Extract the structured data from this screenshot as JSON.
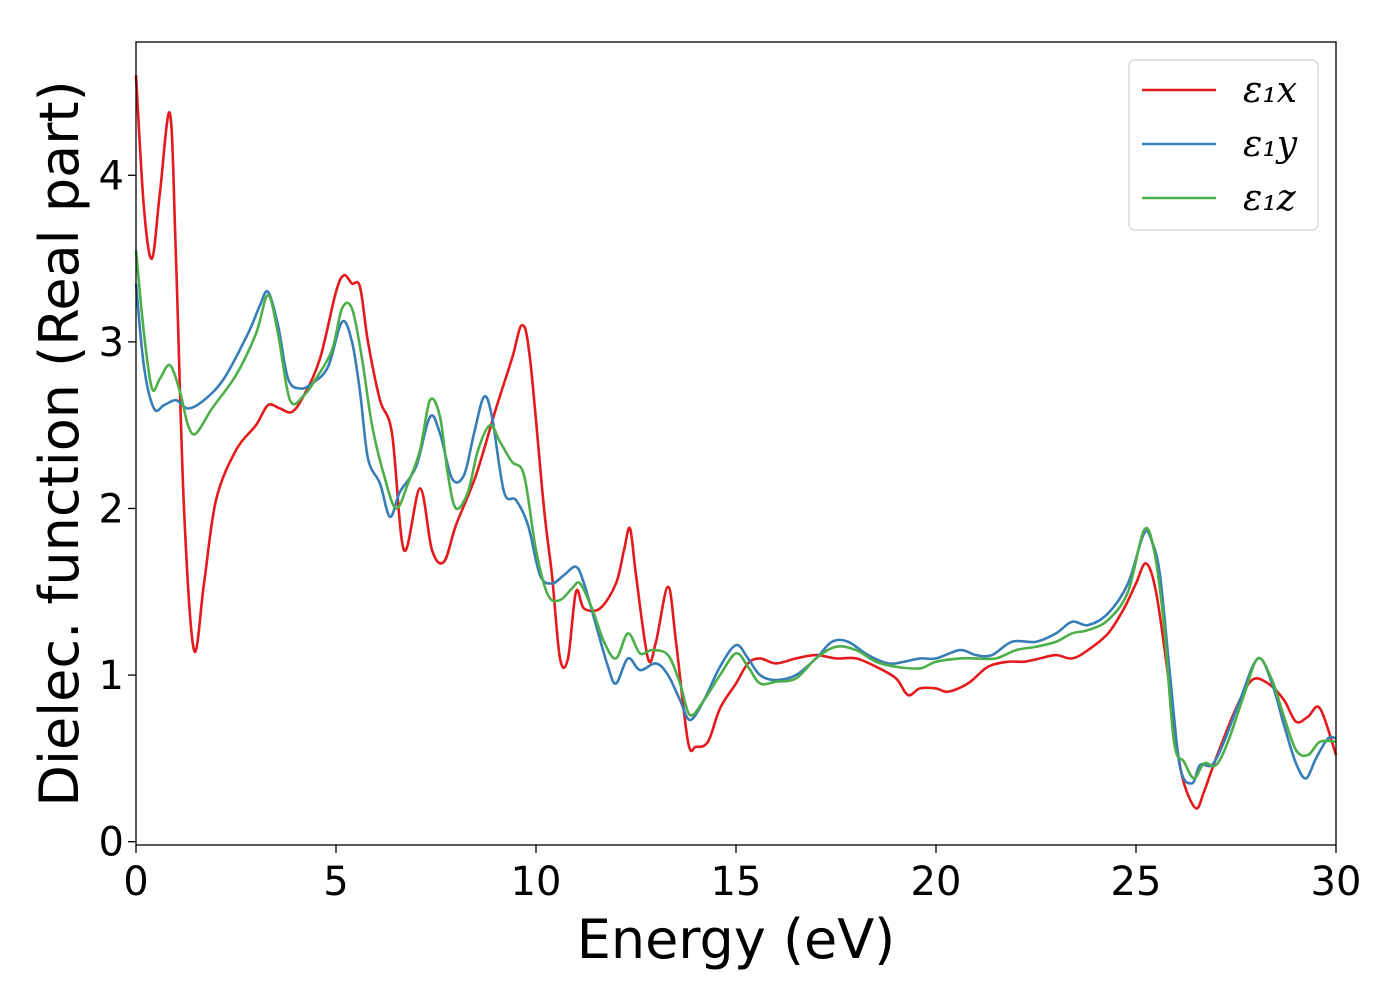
{
  "chart_data": {
    "type": "line",
    "title": "",
    "xlabel": "Energy (eV)",
    "ylabel": "Dielec. function (Real part)",
    "xlim": [
      0,
      30
    ],
    "ylim": [
      -0.02,
      4.8
    ],
    "xticks": [
      0,
      5,
      10,
      15,
      20,
      25,
      30
    ],
    "yticks": [
      0,
      1,
      2,
      3,
      4
    ],
    "grid": false,
    "legend_position": "top-right",
    "series": [
      {
        "name": "ε₁x",
        "color": "#e41a1c",
        "points": [
          [
            0,
            4.6
          ],
          [
            0.2,
            3.8
          ],
          [
            0.4,
            3.5
          ],
          [
            0.6,
            3.9
          ],
          [
            0.85,
            4.37
          ],
          [
            1.0,
            3.5
          ],
          [
            1.2,
            2.0
          ],
          [
            1.45,
            1.15
          ],
          [
            1.7,
            1.55
          ],
          [
            2.0,
            2.05
          ],
          [
            2.5,
            2.35
          ],
          [
            3.0,
            2.5
          ],
          [
            3.3,
            2.62
          ],
          [
            3.6,
            2.6
          ],
          [
            3.9,
            2.58
          ],
          [
            4.2,
            2.68
          ],
          [
            4.6,
            2.9
          ],
          [
            5.0,
            3.3
          ],
          [
            5.2,
            3.4
          ],
          [
            5.4,
            3.35
          ],
          [
            5.6,
            3.33
          ],
          [
            5.8,
            3.0
          ],
          [
            6.1,
            2.65
          ],
          [
            6.4,
            2.45
          ],
          [
            6.7,
            1.75
          ],
          [
            7.1,
            2.12
          ],
          [
            7.4,
            1.75
          ],
          [
            7.7,
            1.68
          ],
          [
            8.0,
            1.9
          ],
          [
            8.5,
            2.2
          ],
          [
            9.0,
            2.6
          ],
          [
            9.4,
            2.9
          ],
          [
            9.65,
            3.1
          ],
          [
            9.85,
            2.9
          ],
          [
            10.2,
            2.0
          ],
          [
            10.4,
            1.6
          ],
          [
            10.6,
            1.1
          ],
          [
            10.8,
            1.1
          ],
          [
            11.0,
            1.5
          ],
          [
            11.2,
            1.4
          ],
          [
            11.6,
            1.4
          ],
          [
            12.0,
            1.55
          ],
          [
            12.2,
            1.75
          ],
          [
            12.35,
            1.88
          ],
          [
            12.5,
            1.6
          ],
          [
            12.8,
            1.1
          ],
          [
            13.0,
            1.2
          ],
          [
            13.3,
            1.53
          ],
          [
            13.5,
            1.2
          ],
          [
            13.8,
            0.6
          ],
          [
            14.0,
            0.57
          ],
          [
            14.3,
            0.6
          ],
          [
            14.6,
            0.8
          ],
          [
            15.0,
            0.95
          ],
          [
            15.3,
            1.07
          ],
          [
            15.6,
            1.1
          ],
          [
            16.0,
            1.07
          ],
          [
            16.5,
            1.1
          ],
          [
            17.0,
            1.12
          ],
          [
            17.5,
            1.1
          ],
          [
            18.0,
            1.1
          ],
          [
            18.5,
            1.05
          ],
          [
            19.0,
            0.98
          ],
          [
            19.3,
            0.88
          ],
          [
            19.6,
            0.92
          ],
          [
            20.0,
            0.92
          ],
          [
            20.3,
            0.9
          ],
          [
            20.8,
            0.95
          ],
          [
            21.3,
            1.05
          ],
          [
            21.8,
            1.08
          ],
          [
            22.2,
            1.08
          ],
          [
            22.6,
            1.1
          ],
          [
            23.0,
            1.12
          ],
          [
            23.4,
            1.1
          ],
          [
            23.8,
            1.15
          ],
          [
            24.3,
            1.25
          ],
          [
            24.7,
            1.4
          ],
          [
            25.0,
            1.55
          ],
          [
            25.25,
            1.67
          ],
          [
            25.5,
            1.5
          ],
          [
            25.8,
            1.0
          ],
          [
            26.0,
            0.6
          ],
          [
            26.2,
            0.35
          ],
          [
            26.5,
            0.2
          ],
          [
            26.7,
            0.3
          ],
          [
            27.0,
            0.5
          ],
          [
            27.5,
            0.8
          ],
          [
            27.9,
            0.97
          ],
          [
            28.3,
            0.95
          ],
          [
            28.7,
            0.85
          ],
          [
            29.0,
            0.72
          ],
          [
            29.3,
            0.75
          ],
          [
            29.6,
            0.8
          ],
          [
            30.0,
            0.52
          ]
        ]
      },
      {
        "name": "ε₁y",
        "color": "#377eb8",
        "points": [
          [
            0,
            3.35
          ],
          [
            0.2,
            2.85
          ],
          [
            0.45,
            2.6
          ],
          [
            0.7,
            2.62
          ],
          [
            1.0,
            2.65
          ],
          [
            1.3,
            2.6
          ],
          [
            1.7,
            2.65
          ],
          [
            2.2,
            2.78
          ],
          [
            2.8,
            3.05
          ],
          [
            3.1,
            3.22
          ],
          [
            3.3,
            3.3
          ],
          [
            3.55,
            3.1
          ],
          [
            3.8,
            2.78
          ],
          [
            4.1,
            2.72
          ],
          [
            4.4,
            2.75
          ],
          [
            4.8,
            2.85
          ],
          [
            5.15,
            3.12
          ],
          [
            5.4,
            3.0
          ],
          [
            5.6,
            2.7
          ],
          [
            5.8,
            2.3
          ],
          [
            6.1,
            2.15
          ],
          [
            6.35,
            1.95
          ],
          [
            6.6,
            2.1
          ],
          [
            7.0,
            2.25
          ],
          [
            7.35,
            2.55
          ],
          [
            7.6,
            2.45
          ],
          [
            7.9,
            2.18
          ],
          [
            8.2,
            2.2
          ],
          [
            8.45,
            2.45
          ],
          [
            8.7,
            2.67
          ],
          [
            8.9,
            2.55
          ],
          [
            9.2,
            2.1
          ],
          [
            9.5,
            2.05
          ],
          [
            9.8,
            1.9
          ],
          [
            10.1,
            1.6
          ],
          [
            10.4,
            1.55
          ],
          [
            10.7,
            1.6
          ],
          [
            11.0,
            1.65
          ],
          [
            11.2,
            1.55
          ],
          [
            11.5,
            1.3
          ],
          [
            11.8,
            1.05
          ],
          [
            12.0,
            0.95
          ],
          [
            12.3,
            1.1
          ],
          [
            12.6,
            1.03
          ],
          [
            13.0,
            1.07
          ],
          [
            13.3,
            1.0
          ],
          [
            13.6,
            0.85
          ],
          [
            13.85,
            0.73
          ],
          [
            14.2,
            0.85
          ],
          [
            14.6,
            1.05
          ],
          [
            15.0,
            1.18
          ],
          [
            15.3,
            1.1
          ],
          [
            15.6,
            1.0
          ],
          [
            16.0,
            0.97
          ],
          [
            16.5,
            1.0
          ],
          [
            17.0,
            1.1
          ],
          [
            17.4,
            1.2
          ],
          [
            17.8,
            1.2
          ],
          [
            18.3,
            1.12
          ],
          [
            18.8,
            1.07
          ],
          [
            19.2,
            1.08
          ],
          [
            19.6,
            1.1
          ],
          [
            20.0,
            1.1
          ],
          [
            20.6,
            1.15
          ],
          [
            21.0,
            1.12
          ],
          [
            21.4,
            1.12
          ],
          [
            21.9,
            1.2
          ],
          [
            22.5,
            1.2
          ],
          [
            23.0,
            1.25
          ],
          [
            23.4,
            1.32
          ],
          [
            23.8,
            1.3
          ],
          [
            24.3,
            1.37
          ],
          [
            24.8,
            1.55
          ],
          [
            25.2,
            1.85
          ],
          [
            25.4,
            1.8
          ],
          [
            25.6,
            1.6
          ],
          [
            25.85,
            1.0
          ],
          [
            26.1,
            0.45
          ],
          [
            26.4,
            0.35
          ],
          [
            26.6,
            0.46
          ],
          [
            26.9,
            0.46
          ],
          [
            27.2,
            0.6
          ],
          [
            27.6,
            0.85
          ],
          [
            28.05,
            1.1
          ],
          [
            28.4,
            0.95
          ],
          [
            28.7,
            0.7
          ],
          [
            29.0,
            0.47
          ],
          [
            29.25,
            0.38
          ],
          [
            29.5,
            0.5
          ],
          [
            29.8,
            0.62
          ],
          [
            30.0,
            0.62
          ]
        ]
      },
      {
        "name": "ε₁z",
        "color": "#4daf4a",
        "points": [
          [
            0,
            3.55
          ],
          [
            0.2,
            3.05
          ],
          [
            0.4,
            2.72
          ],
          [
            0.6,
            2.78
          ],
          [
            0.85,
            2.86
          ],
          [
            1.1,
            2.7
          ],
          [
            1.3,
            2.5
          ],
          [
            1.5,
            2.45
          ],
          [
            1.9,
            2.6
          ],
          [
            2.5,
            2.8
          ],
          [
            3.0,
            3.05
          ],
          [
            3.3,
            3.28
          ],
          [
            3.55,
            3.05
          ],
          [
            3.85,
            2.65
          ],
          [
            4.2,
            2.68
          ],
          [
            4.5,
            2.78
          ],
          [
            4.9,
            2.95
          ],
          [
            5.15,
            3.2
          ],
          [
            5.4,
            3.2
          ],
          [
            5.65,
            2.9
          ],
          [
            5.9,
            2.5
          ],
          [
            6.2,
            2.2
          ],
          [
            6.5,
            2.0
          ],
          [
            6.8,
            2.15
          ],
          [
            7.1,
            2.35
          ],
          [
            7.35,
            2.65
          ],
          [
            7.6,
            2.55
          ],
          [
            7.8,
            2.2
          ],
          [
            8.0,
            2.0
          ],
          [
            8.3,
            2.1
          ],
          [
            8.55,
            2.35
          ],
          [
            8.85,
            2.5
          ],
          [
            9.1,
            2.4
          ],
          [
            9.4,
            2.28
          ],
          [
            9.7,
            2.2
          ],
          [
            10.0,
            1.75
          ],
          [
            10.3,
            1.48
          ],
          [
            10.6,
            1.45
          ],
          [
            10.9,
            1.52
          ],
          [
            11.1,
            1.55
          ],
          [
            11.4,
            1.4
          ],
          [
            11.7,
            1.2
          ],
          [
            12.0,
            1.1
          ],
          [
            12.3,
            1.25
          ],
          [
            12.6,
            1.13
          ],
          [
            12.9,
            1.15
          ],
          [
            13.3,
            1.12
          ],
          [
            13.6,
            0.95
          ],
          [
            13.85,
            0.76
          ],
          [
            14.2,
            0.85
          ],
          [
            14.6,
            1.0
          ],
          [
            15.0,
            1.13
          ],
          [
            15.3,
            1.05
          ],
          [
            15.6,
            0.95
          ],
          [
            16.0,
            0.96
          ],
          [
            16.5,
            0.98
          ],
          [
            17.0,
            1.1
          ],
          [
            17.5,
            1.17
          ],
          [
            18.0,
            1.15
          ],
          [
            18.5,
            1.08
          ],
          [
            19.0,
            1.05
          ],
          [
            19.6,
            1.04
          ],
          [
            20.0,
            1.08
          ],
          [
            20.6,
            1.1
          ],
          [
            21.0,
            1.1
          ],
          [
            21.5,
            1.1
          ],
          [
            22.0,
            1.15
          ],
          [
            22.5,
            1.17
          ],
          [
            23.0,
            1.2
          ],
          [
            23.4,
            1.25
          ],
          [
            23.8,
            1.27
          ],
          [
            24.3,
            1.33
          ],
          [
            24.8,
            1.5
          ],
          [
            25.2,
            1.87
          ],
          [
            25.45,
            1.75
          ],
          [
            25.7,
            1.3
          ],
          [
            25.95,
            0.6
          ],
          [
            26.2,
            0.48
          ],
          [
            26.45,
            0.38
          ],
          [
            26.7,
            0.47
          ],
          [
            27.0,
            0.46
          ],
          [
            27.3,
            0.6
          ],
          [
            27.7,
            0.88
          ],
          [
            28.05,
            1.1
          ],
          [
            28.4,
            0.97
          ],
          [
            28.7,
            0.75
          ],
          [
            29.0,
            0.55
          ],
          [
            29.3,
            0.52
          ],
          [
            29.6,
            0.6
          ],
          [
            30.0,
            0.6
          ]
        ]
      }
    ]
  }
}
